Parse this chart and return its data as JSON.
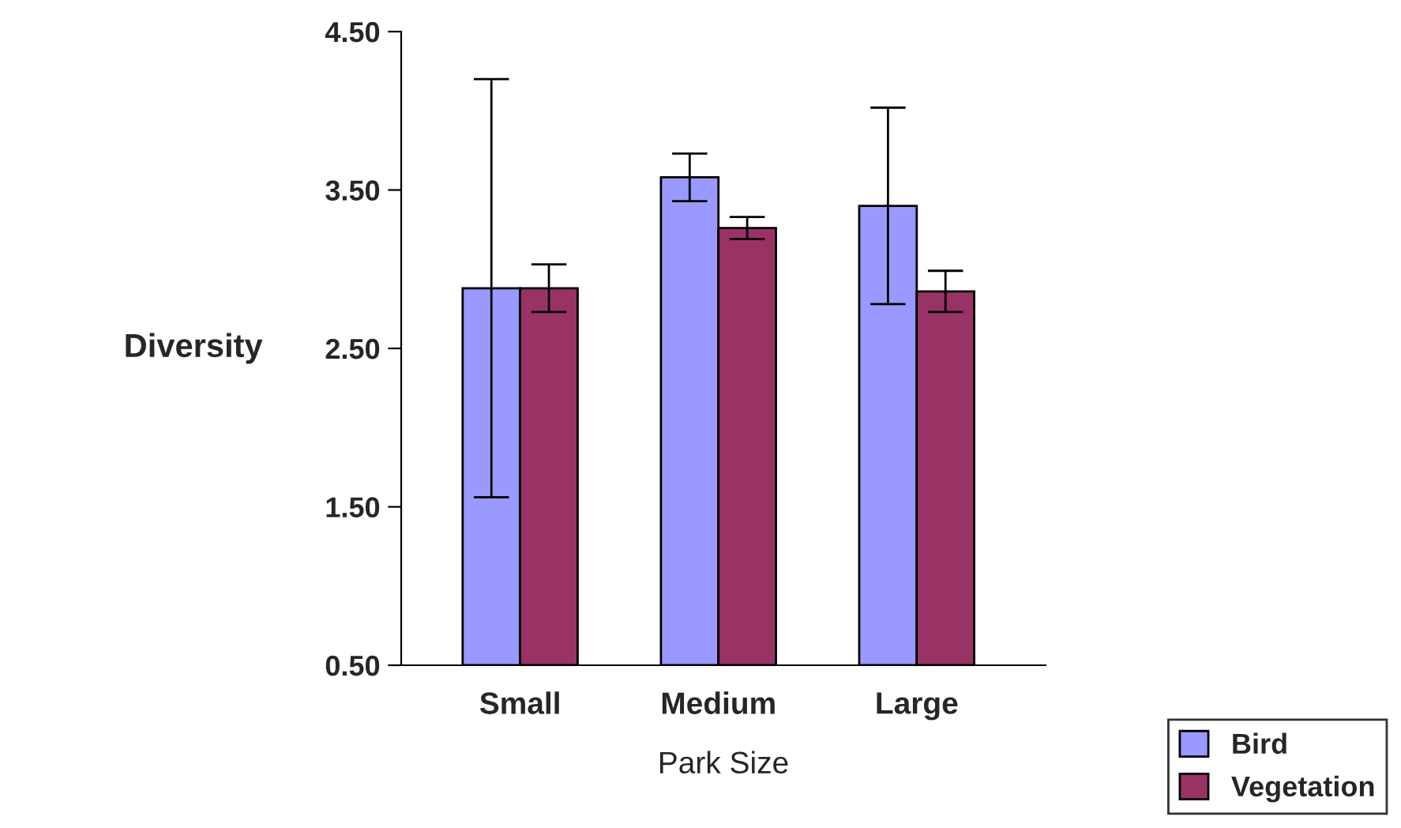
{
  "chart_data": {
    "type": "bar",
    "xlabel": "Park Size",
    "ylabel": "Diversity",
    "categories": [
      "Small",
      "Medium",
      "Large"
    ],
    "series": [
      {
        "name": "Bird",
        "color": "#9999ff",
        "values": [
          2.88,
          3.58,
          3.4
        ],
        "errors": [
          1.32,
          0.15,
          0.62
        ]
      },
      {
        "name": "Vegetation",
        "color": "#993366",
        "values": [
          2.88,
          3.26,
          2.86
        ],
        "errors": [
          0.15,
          0.07,
          0.13
        ]
      }
    ],
    "ylim": [
      0.5,
      4.5
    ],
    "yticks": [
      {
        "value": 0.5,
        "label": "0.50"
      },
      {
        "value": 1.5,
        "label": "1.50"
      },
      {
        "value": 2.5,
        "label": "2.50"
      },
      {
        "value": 3.5,
        "label": "3.50"
      },
      {
        "value": 4.5,
        "label": "4.50"
      }
    ],
    "grid": false,
    "legend": "bottom right"
  }
}
